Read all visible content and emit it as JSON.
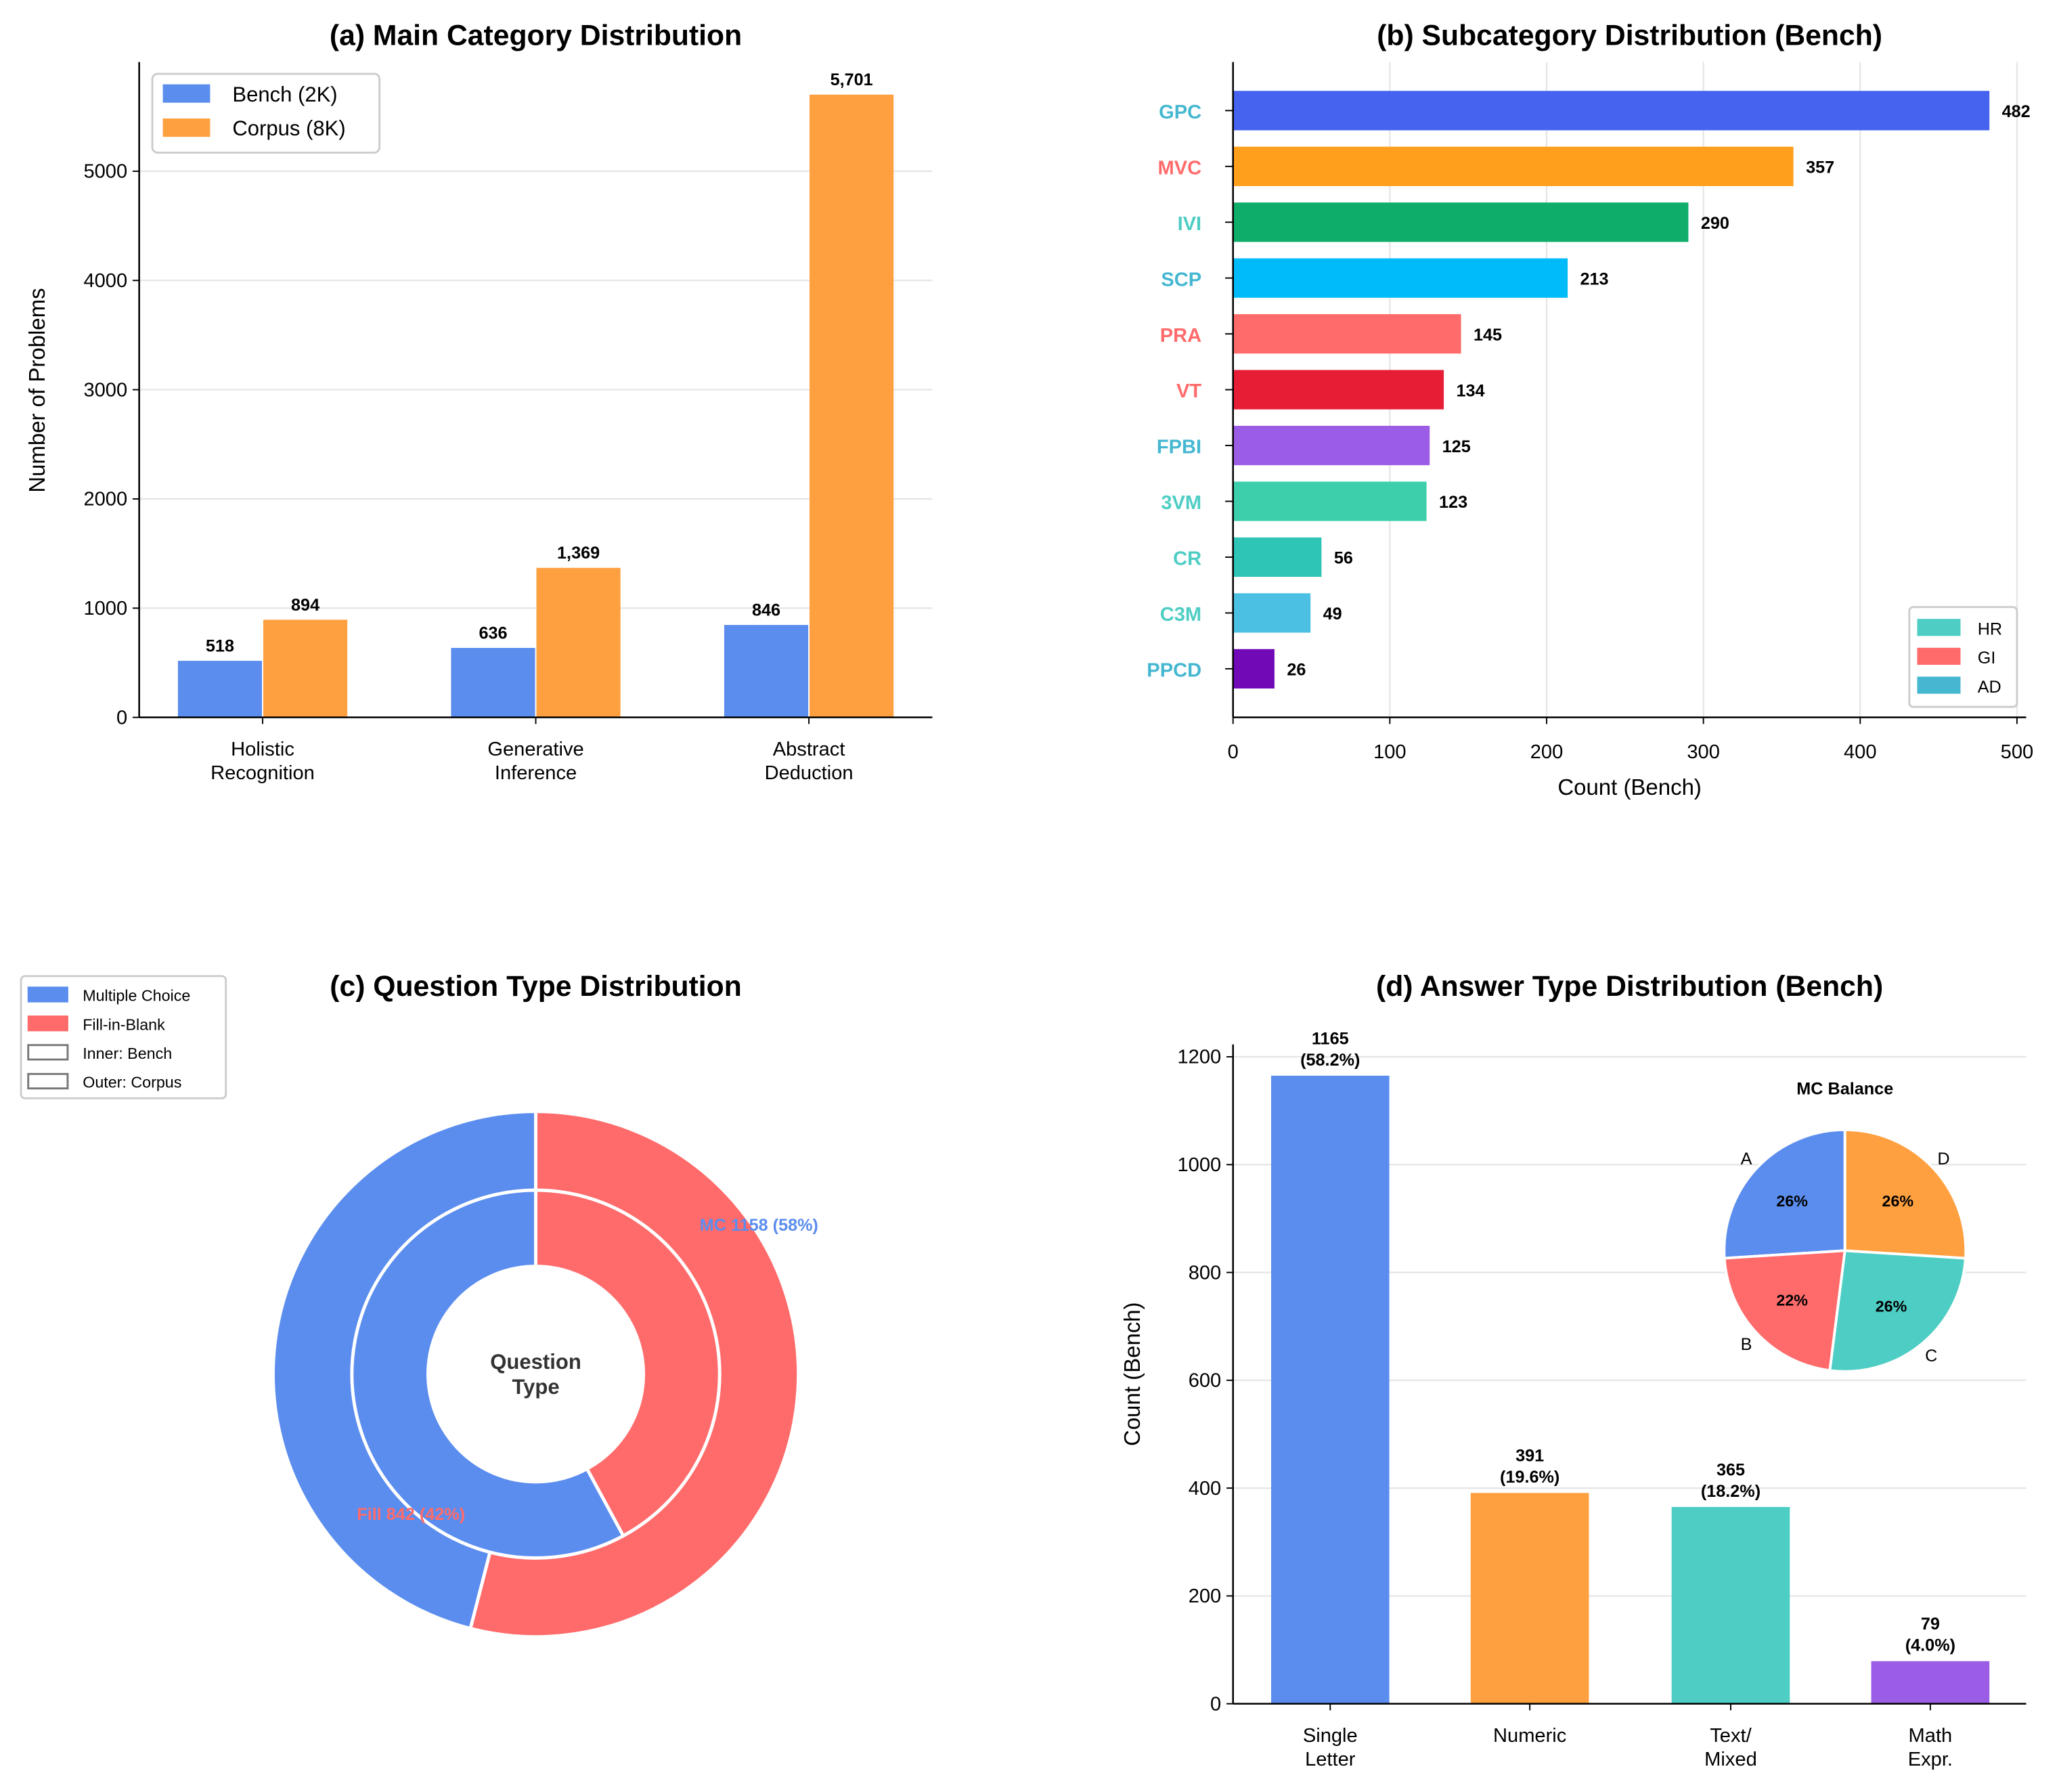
{
  "chart_data": [
    {
      "type": "bar",
      "title": "(a) Main Category Distribution",
      "xlabel": "",
      "ylabel": "Number of Problems",
      "categories": [
        "Holistic\nRecognition",
        "Generative\nInference",
        "Abstract\nDeduction"
      ],
      "series": [
        {
          "name": "Bench (2K)",
          "values": [
            518,
            636,
            846
          ],
          "labels": [
            "518",
            "636",
            "846"
          ],
          "color": "#5B8DEE"
        },
        {
          "name": "Corpus (8K)",
          "values": [
            894,
            1369,
            5701
          ],
          "labels": [
            "894",
            "1,369",
            "5,701"
          ],
          "color": "#FFA040"
        }
      ],
      "ylim": [
        0,
        6000
      ],
      "yticks": [
        0,
        1000,
        2000,
        3000,
        4000,
        5000
      ],
      "grid": "y",
      "legend": "top-left"
    },
    {
      "type": "bar",
      "orientation": "horizontal",
      "title": "(b) Subcategory Distribution (Bench)",
      "xlabel": "Count (Bench)",
      "categories": [
        "GPC",
        "MVC",
        "IVI",
        "SCP",
        "PRA",
        "VT",
        "FPBI",
        "3VM",
        "CR",
        "C3M",
        "PPCD"
      ],
      "values": [
        482,
        357,
        290,
        213,
        145,
        134,
        125,
        123,
        56,
        49,
        26
      ],
      "bar_colors": [
        "#4563EE",
        "#FF9F1C",
        "#0FAD6A",
        "#00BBF9",
        "#FF6B6B",
        "#E71D36",
        "#9B5DE5",
        "#3DCFAB",
        "#2EC4B6",
        "#4CC0E3",
        "#7209B7"
      ],
      "label_groups": [
        "AD",
        "GI",
        "HR",
        "AD",
        "GI",
        "GI",
        "AD",
        "HR",
        "HR",
        "HR",
        "AD"
      ],
      "legend_entries": [
        {
          "name": "HR",
          "color": "#4ECDC4"
        },
        {
          "name": "GI",
          "color": "#FF6B6B"
        },
        {
          "name": "AD",
          "color": "#45B7D1"
        }
      ],
      "xlim": [
        0,
        505
      ],
      "xticks": [
        0,
        100,
        200,
        300,
        400,
        500
      ],
      "grid": "x",
      "legend": "bottom-right"
    },
    {
      "type": "pie",
      "subtype": "nested-donut",
      "title": "(c) Question Type Distribution",
      "center_text": "Question\nType",
      "inner": {
        "name": "Bench",
        "values": [
          1158,
          842
        ]
      },
      "outer": {
        "name": "Corpus",
        "values": [
          46,
          54
        ]
      },
      "slice_names": [
        "Multiple Choice",
        "Fill-in-Blank"
      ],
      "colors": [
        "#5B8DEE",
        "#FF6B6B"
      ],
      "annotations": [
        "MC 1158 (58%)",
        "Fill 842 (42%)"
      ],
      "legend_entries": [
        "Multiple Choice",
        "Fill-in-Blank",
        "Inner: Bench",
        "Outer: Corpus"
      ],
      "legend": "top-left"
    },
    {
      "type": "bar",
      "title": "(d) Answer Type Distribution (Bench)",
      "ylabel": "Count (Bench)",
      "categories": [
        "Single\nLetter",
        "Numeric",
        "Text/\nMixed",
        "Math\nExpr."
      ],
      "values": [
        1165,
        391,
        365,
        79
      ],
      "labels": [
        "1165\n(58.2%)",
        "391\n(19.6%)",
        "365\n(18.2%)",
        "79\n(4.0%)"
      ],
      "colors": [
        "#5B8DEE",
        "#FFA040",
        "#4ECDC4",
        "#9B5DE5"
      ],
      "ylim": [
        0,
        1223
      ],
      "yticks": [
        0,
        200,
        400,
        600,
        800,
        1000,
        1200
      ],
      "grid": "y",
      "inset": {
        "type": "pie",
        "title": "MC Balance",
        "categories": [
          "A",
          "B",
          "C",
          "D"
        ],
        "values": [
          26,
          22,
          26,
          26
        ],
        "labels": [
          "26%",
          "22%",
          "26%",
          "26%"
        ],
        "colors": [
          "#5B8DEE",
          "#FF6B6B",
          "#4ECDC4",
          "#FFA040"
        ]
      }
    }
  ]
}
